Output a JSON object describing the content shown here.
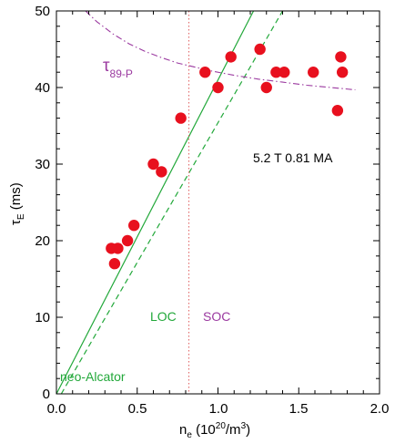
{
  "chart_data": {
    "type": "scatter",
    "xlim": [
      0,
      2.0
    ],
    "ylim": [
      0,
      50
    ],
    "x_ticks": [
      0.0,
      0.5,
      1.0,
      1.5,
      2.0
    ],
    "x_tick_labels": [
      "0.0",
      "0.5",
      "1.0",
      "1.5",
      "2.0"
    ],
    "y_ticks": [
      0,
      10,
      20,
      30,
      40,
      50
    ],
    "y_tick_labels": [
      "0",
      "10",
      "20",
      "30",
      "40",
      "50"
    ],
    "xlabel": {
      "main": "n",
      "sub": "e",
      "rest": " (10",
      "sup": "20",
      "end": "/m",
      "sup2": "3",
      "close": ")"
    },
    "ylabel": {
      "main": "τ",
      "sub": "E",
      "rest": " (ms)"
    },
    "grid": false,
    "points": [
      {
        "x": 0.34,
        "y": 19
      },
      {
        "x": 0.38,
        "y": 19
      },
      {
        "x": 0.36,
        "y": 17
      },
      {
        "x": 0.44,
        "y": 20
      },
      {
        "x": 0.48,
        "y": 22
      },
      {
        "x": 0.6,
        "y": 30
      },
      {
        "x": 0.65,
        "y": 29
      },
      {
        "x": 0.77,
        "y": 36
      },
      {
        "x": 0.92,
        "y": 42
      },
      {
        "x": 1.0,
        "y": 40
      },
      {
        "x": 1.08,
        "y": 44
      },
      {
        "x": 1.26,
        "y": 45
      },
      {
        "x": 1.3,
        "y": 40
      },
      {
        "x": 1.36,
        "y": 42
      },
      {
        "x": 1.41,
        "y": 42
      },
      {
        "x": 1.59,
        "y": 42
      },
      {
        "x": 1.74,
        "y": 37
      },
      {
        "x": 1.76,
        "y": 44
      },
      {
        "x": 1.77,
        "y": 42
      }
    ],
    "point_color": "#e8101e",
    "neo_alcator_line": {
      "color": "#22a83a",
      "x": [
        0,
        1.22
      ],
      "y": [
        0,
        50
      ]
    },
    "neo_alcator_dashed": {
      "color": "#22a83a",
      "x": [
        0.03,
        1.4
      ],
      "y": [
        0,
        50
      ]
    },
    "soc_threshold": {
      "color": "#e06060",
      "x": 0.82
    },
    "tau89p_curve": {
      "color": "#9b3aa0",
      "x": [
        0.18,
        0.25,
        0.35,
        0.45,
        0.55,
        0.65,
        0.75,
        0.85,
        0.95,
        1.1,
        1.25,
        1.4,
        1.55,
        1.7,
        1.85
      ],
      "y": [
        50,
        48.6,
        47.0,
        45.7,
        44.7,
        43.9,
        43.2,
        42.7,
        42.2,
        41.6,
        41.1,
        40.7,
        40.3,
        40.0,
        39.7
      ]
    },
    "annotations": {
      "tau_label": {
        "main": "τ",
        "sub": "89-P",
        "color": "#9b3aa0"
      },
      "loc_label": {
        "text": "LOC",
        "color": "#22a83a"
      },
      "soc_label": {
        "text": "SOC",
        "color": "#9b3aa0"
      },
      "neo_label": {
        "text": "neo-Alcator",
        "color": "#22a83a"
      },
      "conditions": {
        "text": "5.2 T   0.81 MA",
        "color": "#000000"
      }
    }
  }
}
